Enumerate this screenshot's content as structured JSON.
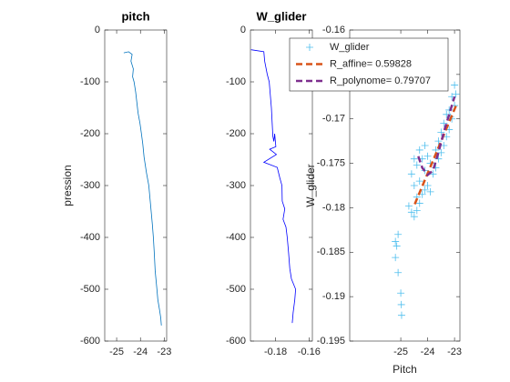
{
  "chart_data": [
    {
      "type": "line",
      "title": "pitch",
      "ylabel": "pression",
      "color": "#0072bd",
      "xlim": [
        -25.5,
        -22.9
      ],
      "xticks": [
        -25,
        -24,
        -23
      ],
      "ylim": [
        -600,
        0
      ],
      "yticks": [
        -600,
        -500,
        -400,
        -300,
        -200,
        -100,
        0
      ],
      "x": [
        -24.7,
        -24.5,
        -24.35,
        -24.4,
        -24.3,
        -24.33,
        -24.27,
        -24.2,
        -24.15,
        -24.1,
        -24.02,
        -23.96,
        -23.9,
        -23.85,
        -23.75,
        -23.65,
        -23.6,
        -23.55,
        -23.5,
        -23.46,
        -23.42,
        -23.38,
        -23.31,
        -23.27,
        -23.2,
        -23.15,
        -23.12
      ],
      "values": [
        -44,
        -42,
        -47,
        -60,
        -75,
        -90,
        -100,
        -120,
        -140,
        -160,
        -180,
        -200,
        -220,
        -245,
        -275,
        -300,
        -325,
        -350,
        -375,
        -400,
        -430,
        -465,
        -500,
        -520,
        -540,
        -555,
        -570
      ]
    },
    {
      "type": "line",
      "title": "W_glider",
      "color": "#0000ff",
      "xlim": [
        -0.195,
        -0.158
      ],
      "xticks": [
        -0.18,
        -0.16
      ],
      "ylim": [
        -600,
        0
      ],
      "yticks": [
        -600,
        -500,
        -400,
        -300,
        -200,
        -100,
        0
      ],
      "x": [
        -0.1946,
        -0.187,
        -0.1865,
        -0.185,
        -0.1838,
        -0.1825,
        -0.1816,
        -0.181,
        -0.1805,
        -0.1798,
        -0.1835,
        -0.1795,
        -0.187,
        -0.179,
        -0.1775,
        -0.1762,
        -0.176,
        -0.1745,
        -0.1755,
        -0.1738,
        -0.173,
        -0.1722,
        -0.1715,
        -0.1705,
        -0.168,
        -0.1685,
        -0.1695,
        -0.17
      ],
      "values": [
        -38,
        -42,
        -60,
        -85,
        -100,
        -150,
        -205,
        -215,
        -200,
        -225,
        -230,
        -240,
        -255,
        -265,
        -285,
        -300,
        -330,
        -345,
        -365,
        -380,
        -400,
        -430,
        -460,
        -480,
        -500,
        -520,
        -545,
        -565
      ]
    },
    {
      "type": "scatter",
      "xlabel": "Pitch",
      "ylabel": "W_glider",
      "legend": "northeast",
      "xlim": [
        -26.9,
        -22.8
      ],
      "xticks": [
        -25,
        -24,
        -23
      ],
      "ylim": [
        -0.195,
        -0.16
      ],
      "yticks": [
        -0.195,
        -0.19,
        -0.185,
        -0.18,
        -0.175,
        -0.17,
        -0.165,
        -0.16
      ],
      "series": [
        {
          "name": "W_glider",
          "color": "#4dbeee",
          "style": "markers",
          "x": [
            -25.1,
            -25.15,
            -25.2,
            -25.1,
            -25.0,
            -24.98,
            -24.97,
            -25.2,
            -24.6,
            -24.5,
            -24.4,
            -24.7,
            -24.3,
            -24.2,
            -24.4,
            -24.1,
            -24.0,
            -23.9,
            -24.3,
            -24.5,
            -24.6,
            -24.4,
            -24.2,
            -24.0,
            -23.8,
            -23.7,
            -23.6,
            -23.5,
            -23.4,
            -23.6,
            -23.3,
            -23.2,
            -23.4,
            -23.1,
            -23.2,
            -23.0,
            -23.1,
            -22.95,
            -23.3,
            -23.5,
            -23.7,
            -23.9,
            -24.1,
            -24.3,
            -24.5,
            -24.1,
            -23.0,
            -23.15
          ],
          "values": [
            -0.183,
            -0.1843,
            -0.1856,
            -0.1873,
            -0.1896,
            -0.1909,
            -0.1921,
            -0.1838,
            -0.1805,
            -0.181,
            -0.1803,
            -0.1798,
            -0.1795,
            -0.1785,
            -0.1788,
            -0.178,
            -0.1775,
            -0.1782,
            -0.177,
            -0.1775,
            -0.1762,
            -0.1752,
            -0.1745,
            -0.1742,
            -0.1762,
            -0.1755,
            -0.1745,
            -0.1738,
            -0.173,
            -0.1725,
            -0.172,
            -0.1712,
            -0.1705,
            -0.17,
            -0.169,
            -0.1685,
            -0.1675,
            -0.1672,
            -0.1695,
            -0.1715,
            -0.1735,
            -0.175,
            -0.1758,
            -0.1735,
            -0.1745,
            -0.173,
            -0.1662,
            -0.1698
          ]
        },
        {
          "name": "R_affine= 0.59828",
          "color": "#d95319",
          "style": "dashed",
          "x": [
            -24.48,
            -22.93
          ],
          "values": [
            -0.1796,
            -0.1684
          ]
        },
        {
          "name": "R_polynome= 0.79707",
          "color": "#7e2f8e",
          "style": "dashed",
          "x": [
            -24.35,
            -24.2,
            -24.0,
            -23.8,
            -23.6,
            -23.4,
            -23.2,
            -23.0
          ],
          "values": [
            -0.1742,
            -0.1755,
            -0.1763,
            -0.1758,
            -0.1738,
            -0.1715,
            -0.1695,
            -0.1675
          ]
        }
      ]
    }
  ]
}
